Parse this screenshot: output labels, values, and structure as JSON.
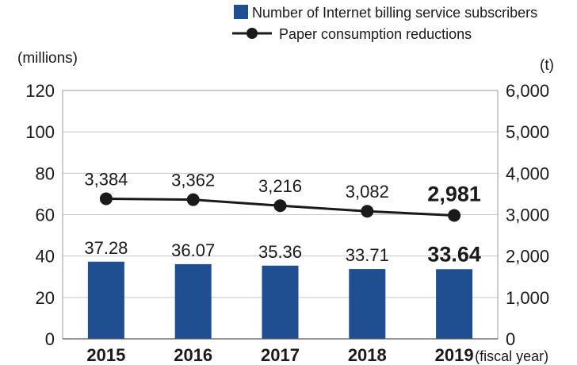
{
  "chart_data": {
    "type": "bar",
    "categories": [
      "2015",
      "2016",
      "2017",
      "2018",
      "2019"
    ],
    "x_suffix": "(fiscal year)",
    "y_left_unit": "(millions)",
    "y_right_unit": "(t)",
    "ylim_left": [
      0,
      120
    ],
    "yticks_left": [
      "0",
      "20",
      "40",
      "60",
      "80",
      "100",
      "120"
    ],
    "ylim_right": [
      0,
      6000
    ],
    "yticks_right": [
      "0",
      "1,000",
      "2,000",
      "3,000",
      "4,000",
      "5,000",
      "6,000"
    ],
    "grid": "horizontal",
    "legend_position": "top-right",
    "highlight_index": 4,
    "series": [
      {
        "name": "Number of Internet billing service subscribers",
        "type": "bar",
        "axis": "left",
        "color": "#1f4e91",
        "values": [
          37.28,
          36.07,
          35.36,
          33.71,
          33.64
        ],
        "labels": [
          "37.28",
          "36.07",
          "35.36",
          "33.71",
          "33.64"
        ]
      },
      {
        "name": "Paper consumption reductions",
        "type": "line",
        "axis": "right",
        "color": "#1a1a1a",
        "values": [
          3384,
          3362,
          3216,
          3082,
          2981
        ],
        "labels": [
          "3,384",
          "3,362",
          "3,216",
          "3,082",
          "2,981"
        ]
      }
    ]
  }
}
